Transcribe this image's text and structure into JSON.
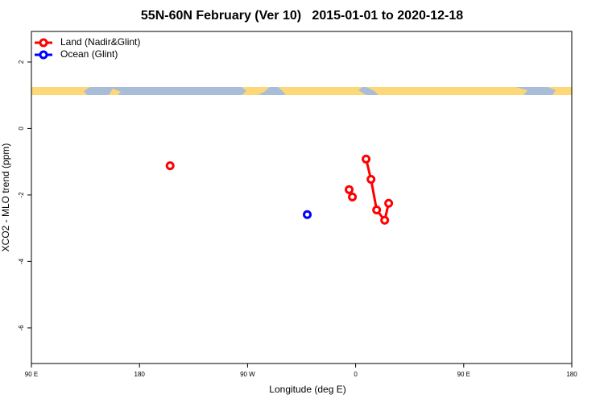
{
  "chart_data": {
    "type": "line",
    "title": "55N-60N February (Ver 10)   2015-01-01 to 2020-12-18",
    "x_label": "Longitude (deg E)",
    "y_label": "XCO2 - MLO trend (ppm)",
    "xlim": [
      -270,
      180
    ],
    "xticks": [
      {
        "value": -270,
        "label": "90 E"
      },
      {
        "value": -180,
        "label": "180"
      },
      {
        "value": -90,
        "label": "90 W"
      },
      0,
      {
        "value": 90,
        "label": "90 E"
      },
      180
    ],
    "ylim": [
      -7.07,
      2.92
    ],
    "yticks": [
      -6,
      -4,
      -2,
      0,
      2
    ],
    "legend": "top-left",
    "series": [
      {
        "name": "Land (Nadir&Glint)",
        "color": "#ff0000",
        "x": [
          -154.5,
          null,
          -5.4,
          null,
          -2.7,
          null,
          8.7,
          12.8,
          17.5,
          24.2,
          27.5
        ],
        "values": [
          -1.12,
          null,
          -1.84,
          null,
          -2.06,
          null,
          -0.92,
          -1.53,
          -2.45,
          -2.76,
          -2.25
        ]
      },
      {
        "name": "Ocean (Glint)",
        "color": "#0000ff",
        "x": [
          -40.3
        ],
        "values": [
          -2.59
        ]
      }
    ]
  }
}
